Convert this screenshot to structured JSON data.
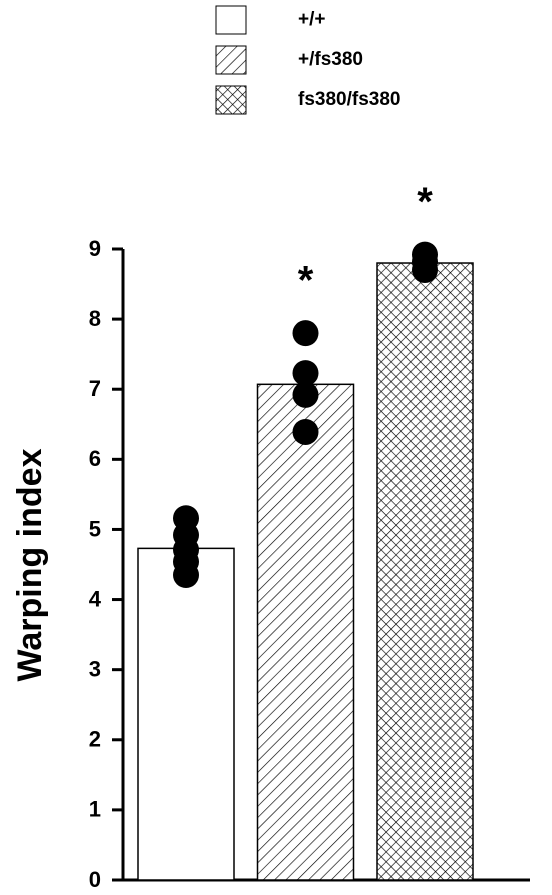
{
  "chart_data": {
    "type": "bar",
    "ylabel": "Warping index",
    "categories": [
      "+/+",
      "+/fs380",
      "fs380/fs380"
    ],
    "values": [
      4.73,
      7.07,
      8.8
    ],
    "patterns": [
      "none",
      "hatch",
      "crosshatch"
    ],
    "points": [
      [
        5.16,
        4.92,
        4.71,
        4.54,
        4.35
      ],
      [
        7.8,
        7.23,
        6.92,
        6.39
      ],
      [
        8.92,
        8.82,
        8.7
      ]
    ],
    "significance_labels": [
      null,
      "*",
      "*"
    ],
    "ylim": [
      0,
      9
    ],
    "yticks": [
      0,
      1,
      2,
      3,
      4,
      5,
      6,
      7,
      8,
      9
    ]
  }
}
